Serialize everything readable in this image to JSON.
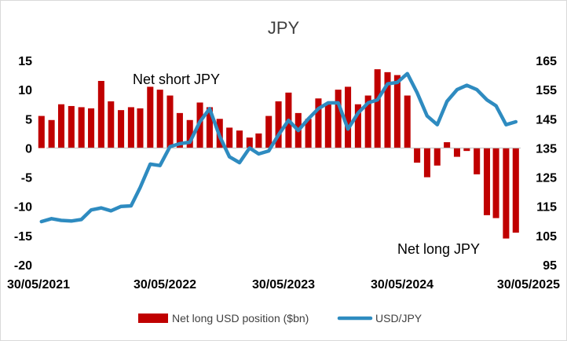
{
  "chart_data": {
    "type": "bar+line",
    "title": "JPY",
    "x_tick_labels": [
      "30/05/2021",
      "30/05/2022",
      "30/05/2023",
      "30/05/2024",
      "30/05/2025"
    ],
    "x_range": [
      "2021-05-30",
      "2025-05-30"
    ],
    "y_left": {
      "range": [
        -20,
        15
      ],
      "ticks": [
        15,
        10,
        5,
        0,
        -5,
        -10,
        -15,
        -20
      ]
    },
    "y_right": {
      "range": [
        95,
        165
      ],
      "ticks": [
        165,
        155,
        145,
        135,
        125,
        115,
        105,
        95
      ]
    },
    "annotations": [
      "Net short JPY",
      "Net long JPY"
    ],
    "legend": {
      "position": "bottom",
      "entries": [
        "Net long USD position ($bn)",
        "USD/JPY"
      ]
    },
    "colors": {
      "bars": "#c00000",
      "line": "#2e8bc0"
    },
    "series": [
      {
        "name": "Net long USD position ($bn)",
        "type": "bar",
        "axis": "left",
        "x": [
          "2021-05",
          "2021-06",
          "2021-07",
          "2021-08",
          "2021-09",
          "2021-10",
          "2021-11",
          "2021-12",
          "2022-01",
          "2022-02",
          "2022-03",
          "2022-04",
          "2022-05",
          "2022-06",
          "2022-07",
          "2022-08",
          "2022-09",
          "2022-10",
          "2022-11",
          "2022-12",
          "2023-01",
          "2023-02",
          "2023-03",
          "2023-04",
          "2023-05",
          "2023-06",
          "2023-07",
          "2023-08",
          "2023-09",
          "2023-10",
          "2023-11",
          "2023-12",
          "2024-01",
          "2024-02",
          "2024-03",
          "2024-04",
          "2024-05",
          "2024-06",
          "2024-07",
          "2024-08",
          "2024-09",
          "2024-10",
          "2024-11",
          "2024-12",
          "2025-01",
          "2025-02",
          "2025-03",
          "2025-04",
          "2025-05"
        ],
        "values": [
          5.5,
          4.8,
          7.5,
          7.2,
          7.0,
          6.8,
          11.5,
          8.0,
          6.5,
          7.0,
          6.8,
          10.5,
          10.0,
          9.0,
          6.0,
          4.8,
          7.8,
          7.0,
          5.0,
          3.5,
          3.0,
          1.8,
          2.5,
          5.5,
          8.0,
          9.5,
          6.0,
          5.0,
          8.5,
          7.5,
          10.0,
          10.5,
          7.5,
          9.0,
          13.5,
          13.0,
          12.5,
          9.0,
          -2.5,
          -5.0,
          -3.0,
          1.0,
          -1.5,
          -0.5,
          -4.5,
          -11.5,
          -12.0,
          -15.5,
          -14.5
        ]
      },
      {
        "name": "USD/JPY",
        "type": "line",
        "axis": "right",
        "x": [
          "2021-05",
          "2021-06",
          "2021-07",
          "2021-08",
          "2021-09",
          "2021-10",
          "2021-11",
          "2021-12",
          "2022-01",
          "2022-02",
          "2022-03",
          "2022-04",
          "2022-05",
          "2022-06",
          "2022-07",
          "2022-08",
          "2022-09",
          "2022-10",
          "2022-11",
          "2022-12",
          "2023-01",
          "2023-02",
          "2023-03",
          "2023-04",
          "2023-05",
          "2023-06",
          "2023-07",
          "2023-08",
          "2023-09",
          "2023-10",
          "2023-11",
          "2023-12",
          "2024-01",
          "2024-02",
          "2024-03",
          "2024-04",
          "2024-05",
          "2024-06",
          "2024-07",
          "2024-08",
          "2024-09",
          "2024-10",
          "2024-11",
          "2024-12",
          "2025-01",
          "2025-02",
          "2025-03",
          "2025-04",
          "2025-05"
        ],
        "values": [
          109.8,
          110.8,
          110.2,
          110.0,
          110.5,
          113.8,
          114.5,
          113.5,
          115.0,
          115.2,
          121.5,
          129.5,
          129.0,
          135.5,
          136.5,
          137.0,
          144.0,
          148.5,
          139.0,
          132.0,
          130.0,
          135.0,
          133.0,
          134.0,
          139.5,
          144.5,
          141.0,
          145.0,
          148.5,
          150.5,
          150.5,
          141.5,
          147.0,
          150.5,
          151.5,
          157.0,
          157.5,
          160.5,
          154.0,
          146.0,
          143.0,
          151.0,
          155.0,
          156.5,
          155.0,
          151.5,
          149.5,
          143.0,
          144.0
        ]
      }
    ]
  }
}
